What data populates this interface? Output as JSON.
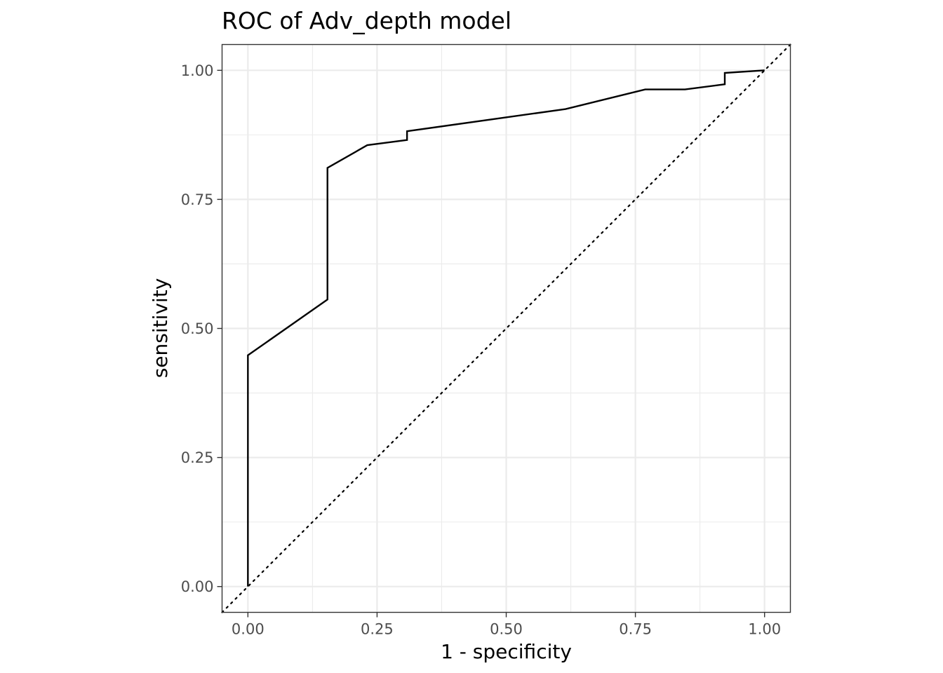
{
  "chart_data": {
    "type": "line",
    "title": "ROC of Adv_depth model",
    "xlabel": "1 - specificity",
    "ylabel": "sensitivity",
    "xlim": [
      -0.05,
      1.05
    ],
    "ylim": [
      -0.05,
      1.05
    ],
    "x_ticks": [
      0,
      0.25,
      0.5,
      0.75,
      1
    ],
    "x_tick_labels": [
      "0.00",
      "0.25",
      "0.50",
      "0.75",
      "1.00"
    ],
    "y_ticks": [
      0,
      0.25,
      0.5,
      0.75,
      1
    ],
    "y_tick_labels": [
      "0.00",
      "0.25",
      "0.50",
      "0.75",
      "1.00"
    ],
    "grid": true,
    "series": [
      {
        "type": "roc",
        "color": "#000000",
        "x": [
          0,
          0,
          0.154,
          0.154,
          0.231,
          0.308,
          0.308,
          0.615,
          0.769,
          0.846,
          0.923,
          0.923,
          1.0
        ],
        "y": [
          0,
          0.448,
          0.556,
          0.811,
          0.855,
          0.865,
          0.882,
          0.925,
          0.963,
          0.963,
          0.973,
          0.995,
          1.0
        ]
      },
      {
        "type": "reference-diagonal",
        "style": "dotted",
        "color": "#000000",
        "x": [
          -0.05,
          1.05
        ],
        "y": [
          -0.05,
          1.05
        ]
      }
    ]
  }
}
